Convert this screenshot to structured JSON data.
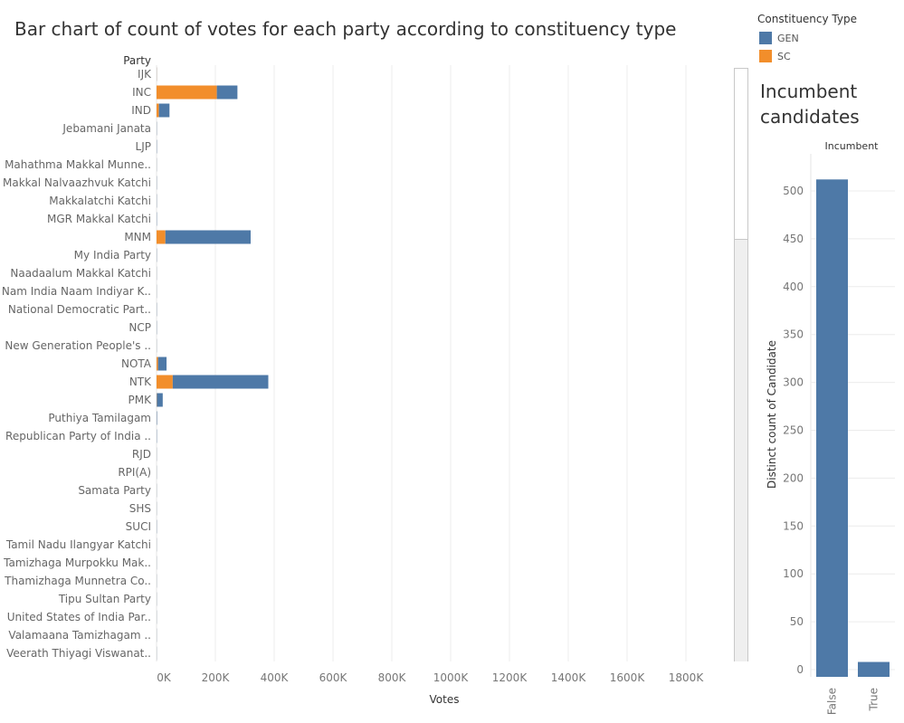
{
  "title": "Bar chart of count of votes for each party according to constituency type",
  "legend": {
    "title": "Constituency Type",
    "items": [
      {
        "label": "GEN",
        "color": "#4e79a7"
      },
      {
        "label": "SC",
        "color": "#f28e2b"
      }
    ]
  },
  "side_chart_title": "Incumbent candidates",
  "chart_data": [
    {
      "type": "bar",
      "orientation": "horizontal",
      "stacked": true,
      "title": "Bar chart of count of votes for each party according to constituency type",
      "category_header": "Party",
      "xlabel": "Votes",
      "xlim": [
        0,
        1900000
      ],
      "x_ticks": [
        0,
        200000,
        400000,
        600000,
        800000,
        1000000,
        1200000,
        1400000,
        1600000,
        1800000
      ],
      "x_tick_labels": [
        "0K",
        "200K",
        "400K",
        "600K",
        "800K",
        "1000K",
        "1200K",
        "1400K",
        "1600K",
        "1800K"
      ],
      "grid": true,
      "legend_position": "top-right",
      "categories": [
        "IJK",
        "INC",
        "IND",
        "Jebamani Janata",
        "LJP",
        "Mahathma Makkal Munne..",
        "Makkal Nalvaazhvuk Katchi",
        "Makkalatchi Katchi",
        "MGR Makkal Katchi",
        "MNM",
        "My India Party",
        "Naadaalum Makkal Katchi",
        "Nam India Naam Indiyar K..",
        "National Democratic Part..",
        "NCP",
        "New Generation People's ..",
        "NOTA",
        "NTK",
        "PMK",
        "Puthiya Tamilagam",
        "Republican Party of India  ..",
        "RJD",
        "RPI(A)",
        "Samata Party",
        "SHS",
        "SUCI",
        "Tamil Nadu Ilangyar Katchi",
        "Tamizhaga Murpokku Mak..",
        "Thamizhaga Munnetra Co..",
        "Tipu Sultan Party",
        "United States of India Par..",
        "Valamaana  Tamizhagam  ..",
        "Veerath Thiyagi Viswanat.."
      ],
      "series": [
        {
          "name": "SC",
          "color": "#f28e2b",
          "values": [
            500,
            205000,
            8000,
            300,
            400,
            200,
            300,
            300,
            300,
            30000,
            300,
            200,
            200,
            300,
            300,
            200,
            5000,
            55000,
            1000,
            500,
            300,
            200,
            200,
            200,
            200,
            300,
            200,
            200,
            200,
            200,
            200,
            200,
            200
          ]
        },
        {
          "name": "GEN",
          "color": "#4e79a7",
          "values": [
            500,
            70000,
            36000,
            800,
            1000,
            500,
            800,
            800,
            1000,
            290000,
            800,
            500,
            500,
            800,
            800,
            500,
            29000,
            325000,
            20000,
            1500,
            1000,
            500,
            500,
            500,
            500,
            800,
            500,
            500,
            500,
            500,
            500,
            500,
            500
          ]
        }
      ]
    },
    {
      "type": "bar",
      "title": "Incumbent",
      "xlabel": "",
      "ylabel": "Distinct count of Candidate",
      "categories": [
        "False",
        "True"
      ],
      "values": [
        512,
        8
      ],
      "ylim": [
        0,
        530
      ],
      "y_ticks": [
        0,
        50,
        100,
        150,
        200,
        250,
        300,
        350,
        400,
        450,
        500
      ],
      "color": "#4e79a7",
      "grid": true
    }
  ]
}
